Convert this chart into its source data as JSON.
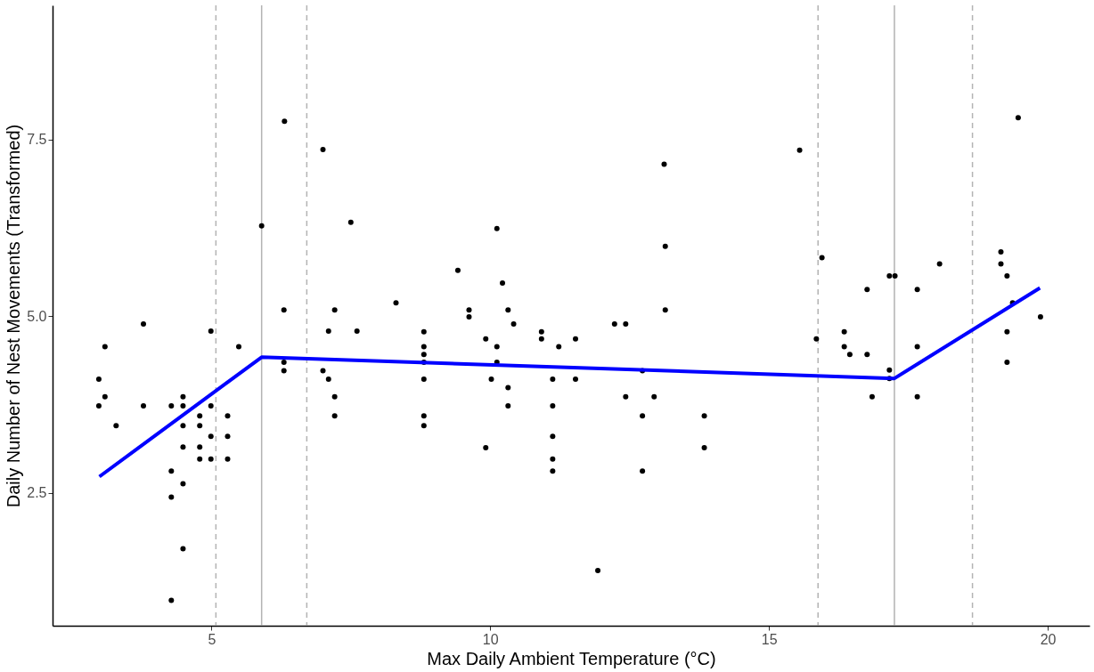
{
  "chart_data": {
    "type": "scatter",
    "xlabel": "Max Daily Ambient Temperature (°C)",
    "ylabel": "Daily Number of Nest Movements (Transformed)",
    "xlim": [
      2.15,
      20.75
    ],
    "ylim": [
      0.62,
      9.4
    ],
    "xticks": [
      5,
      10,
      15,
      20
    ],
    "yticks": [
      2.5,
      {
        "value": 5,
        "label": "5.0"
      },
      7.5
    ],
    "grid": false,
    "series": [
      {
        "color": "#000000",
        "marker": "circle",
        "x": [
          3.09,
          3.78,
          2.98,
          3.09,
          2.98,
          3.29,
          3.78,
          4.28,
          4.49,
          4.49,
          4.49,
          4.49,
          4.28,
          4.49,
          4.28,
          4.49,
          4.28,
          4.79,
          4.79,
          4.79,
          4.79,
          4.99,
          4.99,
          4.99,
          4.99,
          5.29,
          5.29,
          5.29,
          5.49,
          5.9,
          6.31,
          6.3,
          6.3,
          6.3,
          7.0,
          7.21,
          7.1,
          7.61,
          7.0,
          7.1,
          7.21,
          7.21,
          7.5,
          10.12,
          13.14,
          9.42,
          10.22,
          8.31,
          9.62,
          9.62,
          10.32,
          13.14,
          10.42,
          12.23,
          12.43,
          8.81,
          10.92,
          10.92,
          9.92,
          11.53,
          10.12,
          11.23,
          8.81,
          8.81,
          8.81,
          10.12,
          12.73,
          8.81,
          10.02,
          11.12,
          11.53,
          10.32,
          12.43,
          12.94,
          10.32,
          11.12,
          8.81,
          12.73,
          13.84,
          8.81,
          9.92,
          13.84,
          11.12,
          11.12,
          11.12,
          12.73,
          11.93,
          13.12,
          15.55,
          19.47,
          15.95,
          18.06,
          19.16,
          19.16,
          19.27,
          17.16,
          17.26,
          16.76,
          17.66,
          19.37,
          19.87,
          15.85,
          16.35,
          16.35,
          16.45,
          16.76,
          17.66,
          19.27,
          19.27,
          17.16,
          17.16,
          16.85,
          17.66
        ],
        "values": [
          4.57,
          4.89,
          4.11,
          3.86,
          3.73,
          3.45,
          3.73,
          3.73,
          3.86,
          3.73,
          3.45,
          3.15,
          2.81,
          2.63,
          2.44,
          1.71,
          0.98,
          3.59,
          3.45,
          3.15,
          2.98,
          4.79,
          3.73,
          3.3,
          2.98,
          3.59,
          3.3,
          2.98,
          4.57,
          6.28,
          7.76,
          5.09,
          4.35,
          4.23,
          7.36,
          5.09,
          4.79,
          4.79,
          4.23,
          4.11,
          3.86,
          3.59,
          6.33,
          6.24,
          5.99,
          5.65,
          5.47,
          5.19,
          5.09,
          4.99,
          5.09,
          5.09,
          4.89,
          4.89,
          4.89,
          4.78,
          4.78,
          4.68,
          4.68,
          4.68,
          4.57,
          4.57,
          4.57,
          4.46,
          4.35,
          4.35,
          4.23,
          4.11,
          4.11,
          4.11,
          4.11,
          3.99,
          3.86,
          3.86,
          3.73,
          3.73,
          3.59,
          3.59,
          3.59,
          3.45,
          3.14,
          3.14,
          3.3,
          2.98,
          2.81,
          2.81,
          1.4,
          7.15,
          7.35,
          7.81,
          5.83,
          5.74,
          5.91,
          5.74,
          5.57,
          5.57,
          5.57,
          5.38,
          5.38,
          5.19,
          4.99,
          4.68,
          4.78,
          4.57,
          4.46,
          4.46,
          4.57,
          4.78,
          4.35,
          4.24,
          4.12,
          3.86,
          3.86
        ]
      },
      {
        "type": "line",
        "color": "#0000ff",
        "line_style": "solid",
        "x": [
          2.99,
          5.9,
          17.25,
          19.86
        ],
        "values": [
          2.73,
          4.42,
          4.12,
          5.4
        ]
      }
    ],
    "ref_lines": [
      {
        "axis": "x",
        "value": 5.9,
        "color": "#b3b3b3",
        "line_style": "solid"
      },
      {
        "axis": "x",
        "value": 17.25,
        "color": "#b3b3b3",
        "line_style": "solid"
      },
      {
        "axis": "x",
        "value": 5.08,
        "color": "#b3b3b3",
        "line_style": "dashed"
      },
      {
        "axis": "x",
        "value": 6.71,
        "color": "#b3b3b3",
        "line_style": "dashed"
      },
      {
        "axis": "x",
        "value": 15.88,
        "color": "#b3b3b3",
        "line_style": "dashed"
      },
      {
        "axis": "x",
        "value": 18.65,
        "color": "#b3b3b3",
        "line_style": "dashed"
      }
    ]
  }
}
